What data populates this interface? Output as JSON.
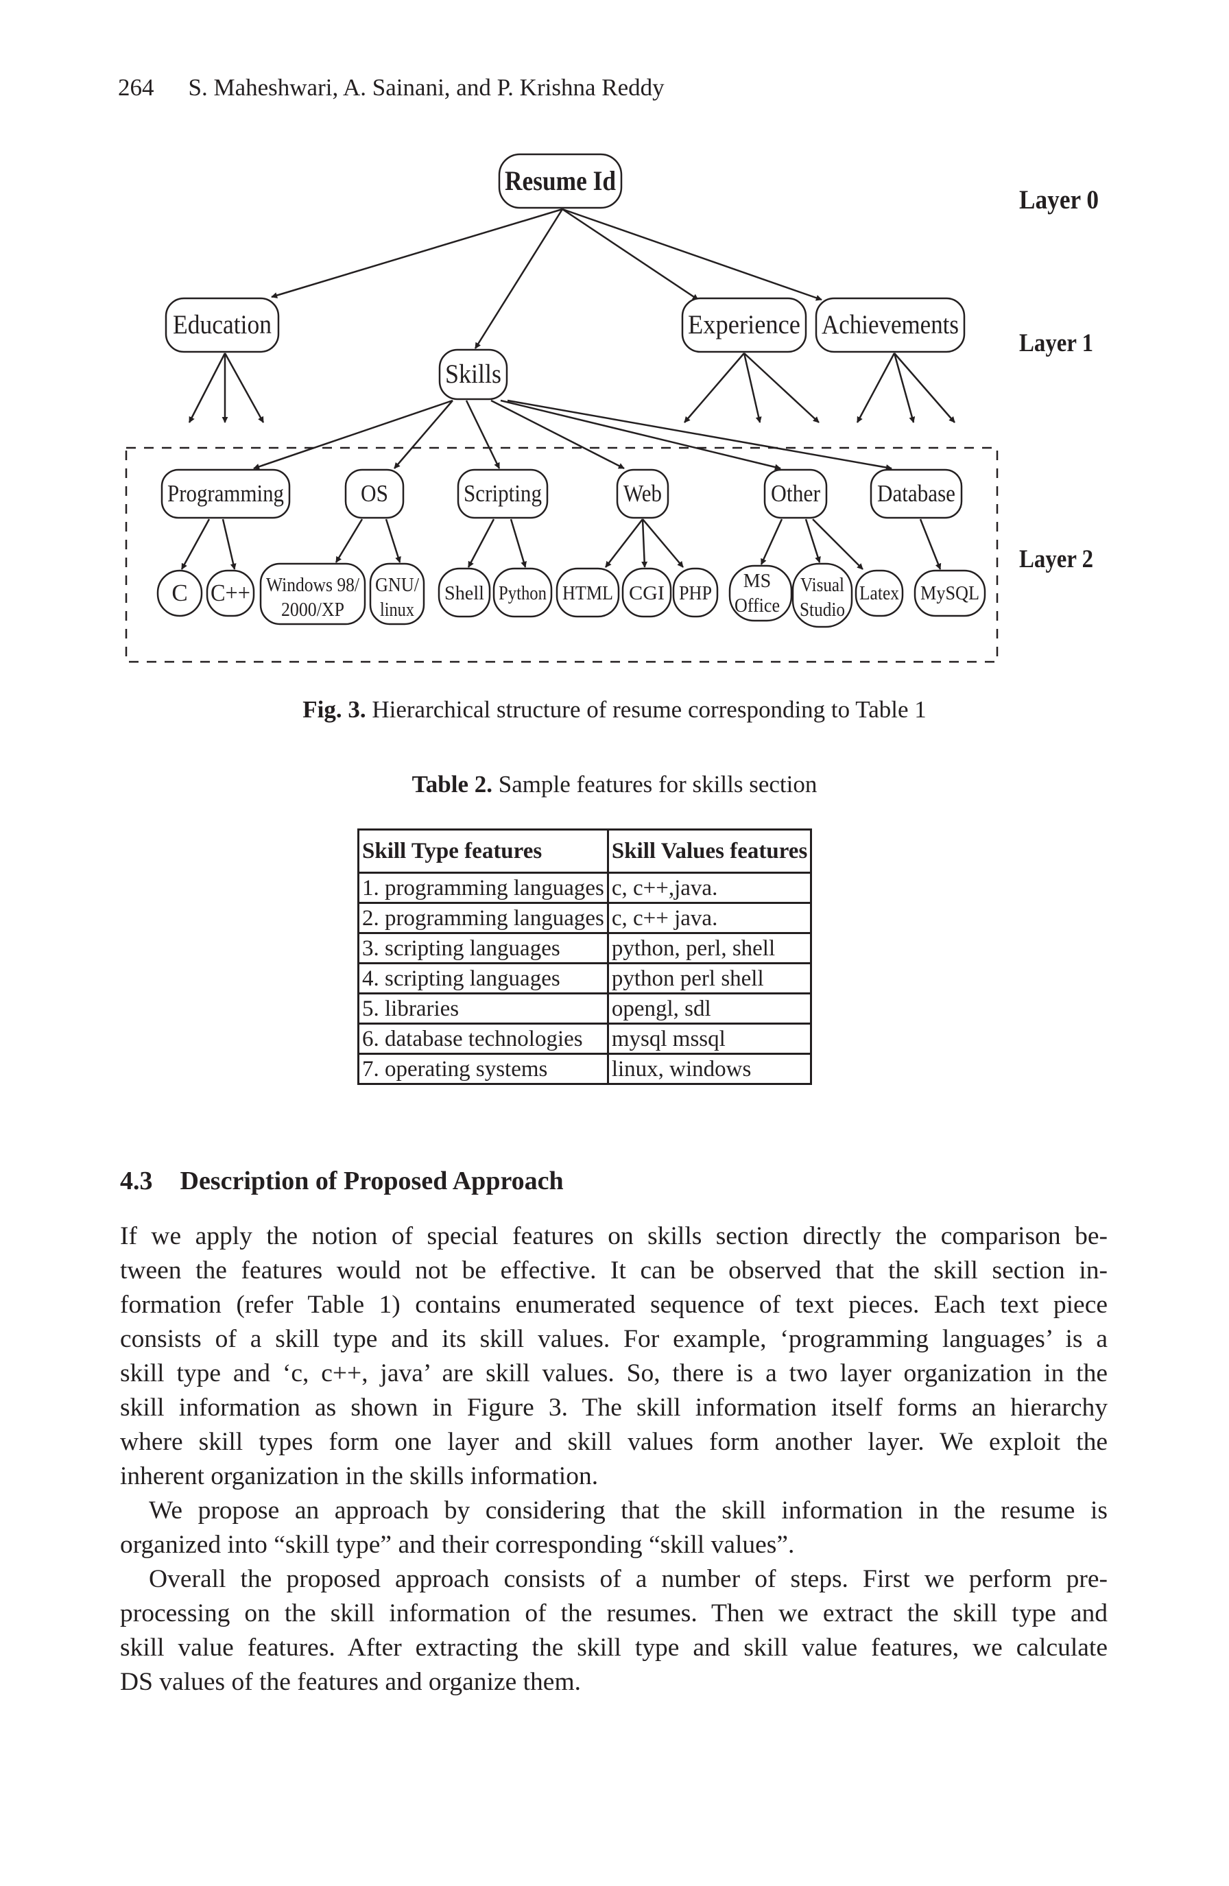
{
  "header": {
    "page_number": "264",
    "authors": "S. Maheshwari, A. Sainani, and P. Krishna Reddy"
  },
  "figure": {
    "layers": [
      "Layer 0",
      "Layer 1",
      "Layer 2"
    ],
    "root": "Resume Id",
    "layer1": [
      "Education",
      "Skills",
      "Experience",
      "Achievements"
    ],
    "skill_types": [
      "Programming",
      "OS",
      "Scripting",
      "Web",
      "Other",
      "Database"
    ],
    "skill_values": {
      "c": "C",
      "cpp": "C++",
      "win_l1": "Windows 98/",
      "win_l2": "2000/XP",
      "gnu_l1": "GNU/",
      "gnu_l2": "linux",
      "shell": "Shell",
      "python": "Python",
      "html": "HTML",
      "cgi": "CGI",
      "php": "PHP",
      "ms_l1": "MS",
      "ms_l2": "Office",
      "vs_l1": "Visual",
      "vs_l2": "Studio",
      "latex": "Latex",
      "mysql": "MySQL"
    },
    "caption_label": "Fig. 3.",
    "caption_text": "Hierarchical structure of resume corresponding to Table 1"
  },
  "table": {
    "caption_label": "Table 2.",
    "caption_text": "Sample features for skills section",
    "headers": [
      "Skill Type features",
      "Skill Values features"
    ],
    "rows": [
      [
        "1. programming languages",
        "c, c++,java."
      ],
      [
        "2. programming languages",
        "c, c++ java."
      ],
      [
        "3. scripting languages",
        "python, perl, shell"
      ],
      [
        "4. scripting languages",
        "python perl shell"
      ],
      [
        "5. libraries",
        "opengl, sdl"
      ],
      [
        "6. database technologies",
        "mysql mssql"
      ],
      [
        "7. operating systems",
        "linux, windows"
      ]
    ]
  },
  "section": {
    "number": "4.3",
    "title": "Description of Proposed Approach"
  },
  "paragraphs": [
    [
      "If we apply the notion of special features on skills section directly the comparison be-",
      "tween the features would not be effective. It can be observed that the skill section in-",
      "formation (refer Table 1) contains enumerated sequence of text pieces. Each text piece",
      "consists of a skill type and its skill values. For example, ‘programming languages’ is a",
      "skill type and ‘c, c++, java’ are skill values. So, there is a two layer organization in the",
      "skill information as shown in Figure 3. The skill information itself forms an hierarchy",
      "where skill types form one layer and skill values form another layer. We exploit the",
      "inherent organization in the skills information."
    ],
    [
      "We propose an approach by considering that the skill information in the resume is",
      "organized into “skill type” and their corresponding “skill values”."
    ],
    [
      "Overall the proposed approach consists of a number of steps. First we perform pre-",
      "processing on the skill information of the resumes. Then we extract the skill type and",
      "skill value features. After extracting the skill type and skill value features, we calculate",
      "DS values of the features and organize them."
    ]
  ]
}
